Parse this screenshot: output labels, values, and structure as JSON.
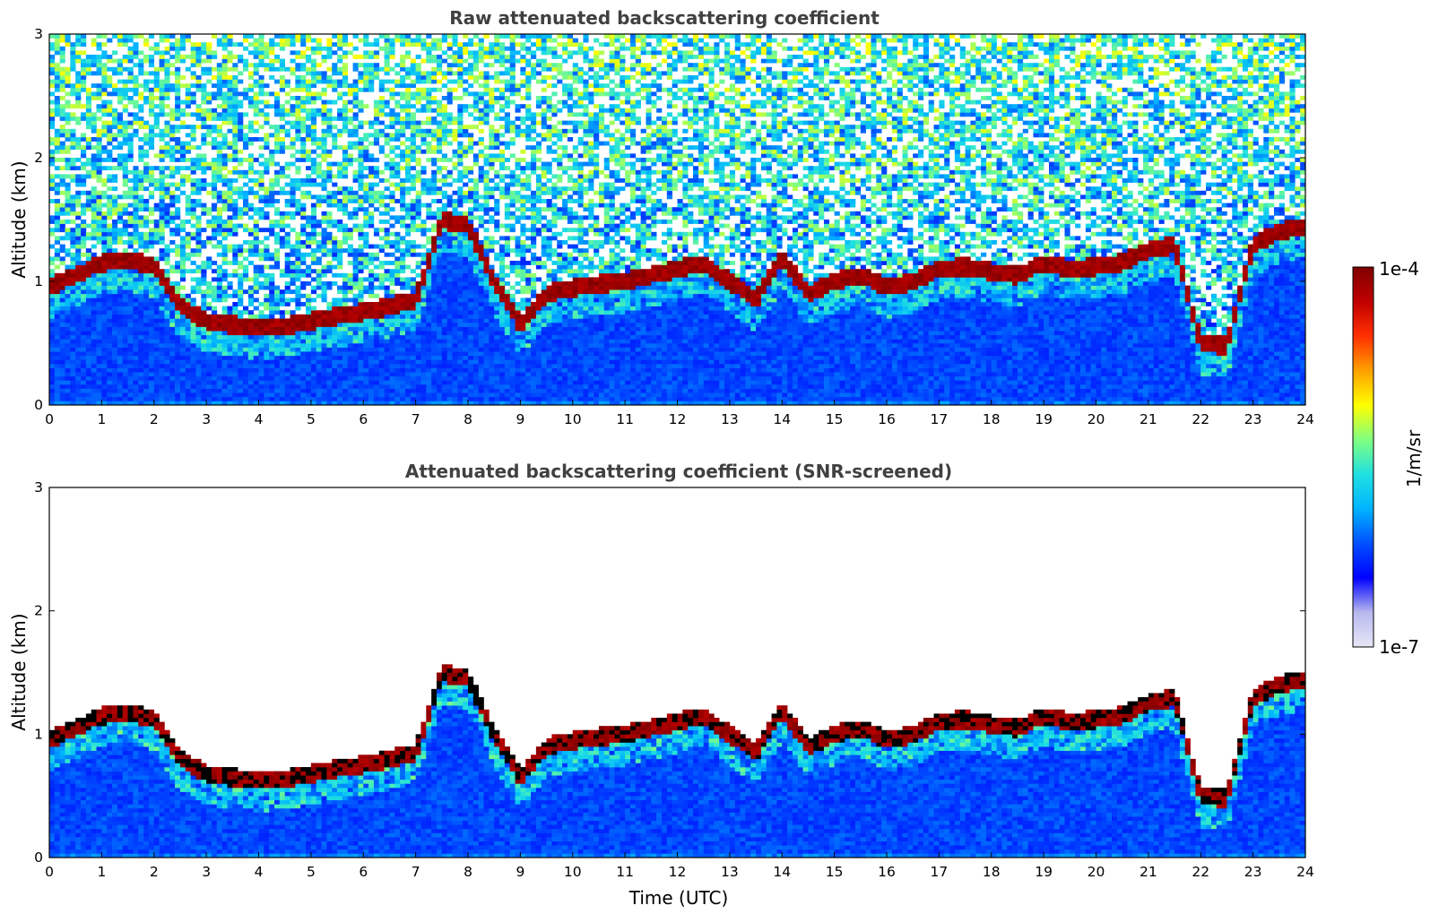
{
  "chart_data": [
    {
      "type": "heatmap",
      "title": "Raw attenuated backscattering coefficient",
      "xlabel": "",
      "ylabel": "Altitude (km)",
      "xlim": [
        0,
        24
      ],
      "ylim": [
        0,
        3
      ],
      "x_ticks": [
        "0",
        "1",
        "2",
        "3",
        "4",
        "5",
        "6",
        "7",
        "8",
        "9",
        "10",
        "11",
        "12",
        "13",
        "14",
        "15",
        "16",
        "17",
        "18",
        "19",
        "20",
        "21",
        "22",
        "23",
        "24"
      ],
      "y_ticks": [
        "0",
        "1",
        "2",
        "3"
      ],
      "screened": false
    },
    {
      "type": "heatmap",
      "title": "Attenuated backscattering coefficient (SNR-screened)",
      "xlabel": "Time (UTC)",
      "ylabel": "Altitude (km)",
      "xlim": [
        0,
        24
      ],
      "ylim": [
        0,
        3
      ],
      "x_ticks": [
        "0",
        "1",
        "2",
        "3",
        "4",
        "5",
        "6",
        "7",
        "8",
        "9",
        "10",
        "11",
        "12",
        "13",
        "14",
        "15",
        "16",
        "17",
        "18",
        "19",
        "20",
        "21",
        "22",
        "23",
        "24"
      ],
      "y_ticks": [
        "0",
        "1",
        "2",
        "3"
      ],
      "screened": true
    }
  ],
  "layer": {
    "time_utc": [
      0,
      0.5,
      1,
      1.5,
      2,
      2.5,
      3,
      3.5,
      4,
      4.5,
      5,
      5.5,
      6,
      6.5,
      7,
      7.5,
      8,
      8.5,
      9,
      9.5,
      10,
      10.5,
      11,
      11.5,
      12,
      12.5,
      13,
      13.5,
      14,
      14.5,
      15,
      15.5,
      16,
      16.5,
      17,
      17.5,
      18,
      18.5,
      19,
      19.5,
      20,
      20.5,
      21,
      21.5,
      22,
      22.5,
      23,
      23.5,
      24
    ],
    "top_altitude_km": [
      0.95,
      1.05,
      1.15,
      1.18,
      1.12,
      0.8,
      0.68,
      0.65,
      0.62,
      0.64,
      0.68,
      0.72,
      0.75,
      0.8,
      0.85,
      1.5,
      1.45,
      1.0,
      0.65,
      0.9,
      0.95,
      0.98,
      1.0,
      1.05,
      1.1,
      1.15,
      1.0,
      0.85,
      1.2,
      0.9,
      1.0,
      1.05,
      0.95,
      1.0,
      1.1,
      1.12,
      1.08,
      1.05,
      1.15,
      1.1,
      1.12,
      1.15,
      1.25,
      1.3,
      0.5,
      0.48,
      1.3,
      1.4,
      1.45
    ]
  },
  "colorbar": {
    "label": "1/m/sr",
    "max_label": "1e-4",
    "min_label": "1e-7",
    "scale": "log",
    "colormap": [
      "#e6e6f7",
      "#b8b8ee",
      "#0000ff",
      "#0050ff",
      "#00b4ff",
      "#20e0e0",
      "#80ff80",
      "#ffff00",
      "#ffa000",
      "#ff3000",
      "#c00000",
      "#800000"
    ]
  }
}
